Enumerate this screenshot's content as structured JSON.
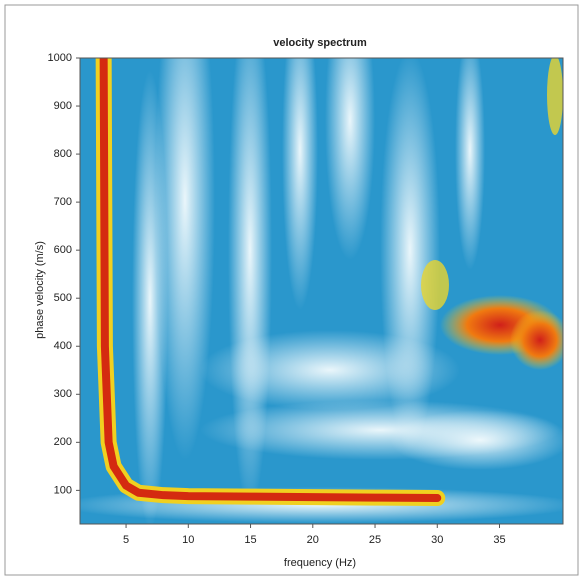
{
  "chart_data": {
    "type": "heatmap",
    "title": "velocity spectrum",
    "x_label": "frequency (Hz)",
    "y_label": "phase velocity (m/s)",
    "x": [
      3.2,
      3.3,
      3.6,
      4,
      5,
      6,
      8,
      10,
      15,
      20,
      25,
      30
    ],
    "values": [
      1000,
      400,
      200,
      150,
      110,
      95,
      90,
      88,
      87,
      86,
      85,
      84
    ],
    "color": "#d42a10",
    "xlim": [
      1.3,
      40.1
    ],
    "ylim": [
      30,
      1000
    ],
    "xticks": [
      5,
      10,
      15,
      20,
      25,
      30,
      35
    ],
    "yticks": [
      100,
      200,
      300,
      400,
      500,
      600,
      700,
      800,
      900,
      1000
    ]
  }
}
